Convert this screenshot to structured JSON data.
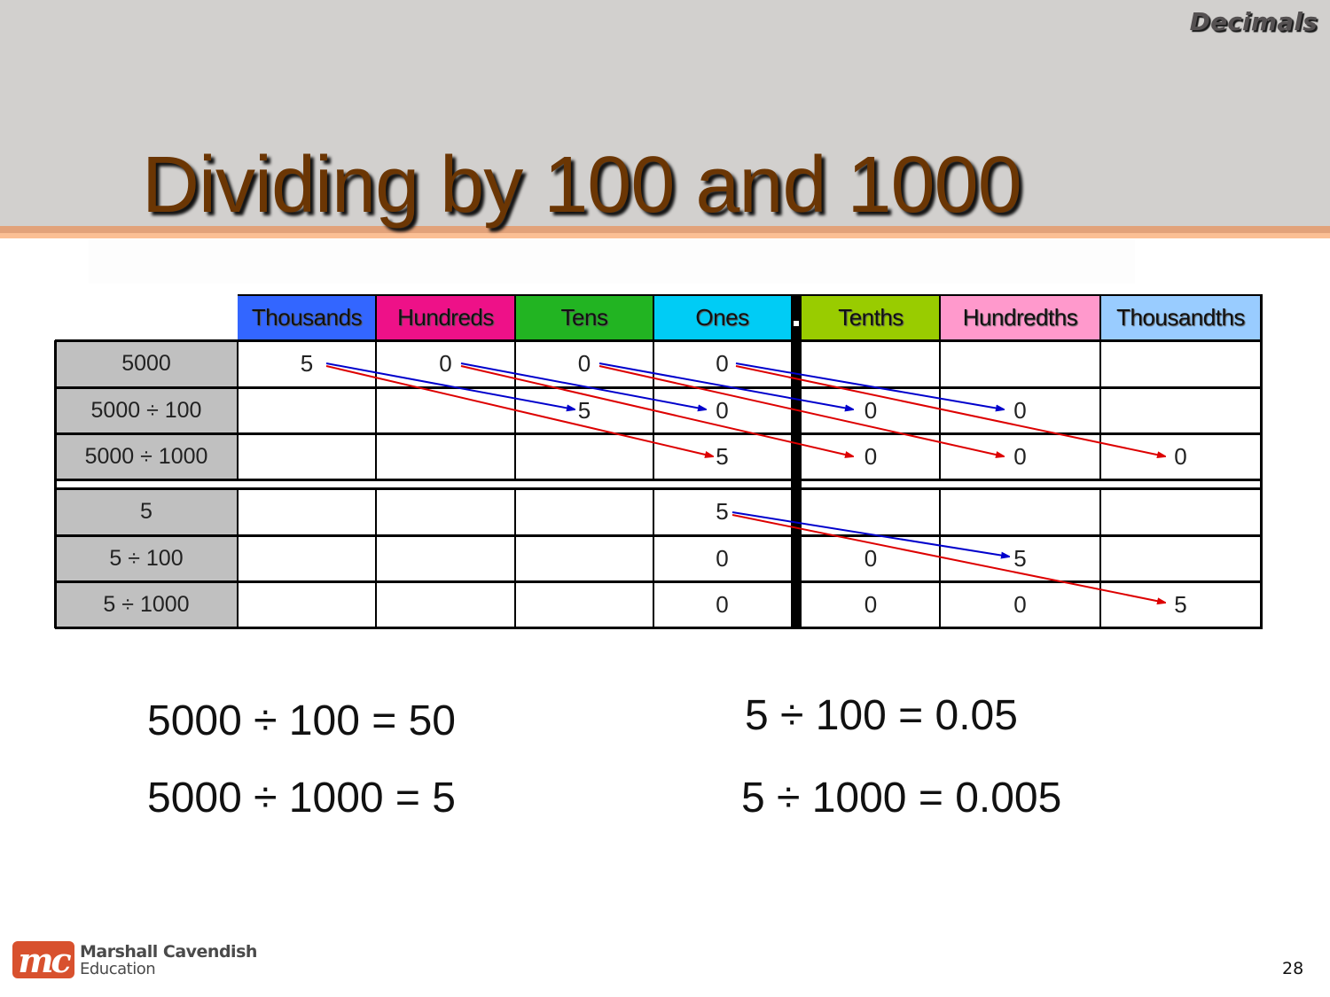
{
  "slide": {
    "topic": "Decimals",
    "title": "Dividing by 100 and 1000",
    "page_number": "28"
  },
  "place_value_table": {
    "columns": [
      {
        "label": "Thousands",
        "color": "#3366ff"
      },
      {
        "label": "Hundreds",
        "color": "#ee1188"
      },
      {
        "label": "Tens",
        "color": "#22b422"
      },
      {
        "label": "Ones",
        "color": "#00ccf5"
      },
      {
        "label": "Tenths",
        "color": "#99cc00"
      },
      {
        "label": "Hundredths",
        "color": "#ff99cc"
      },
      {
        "label": "Thousandths",
        "color": "#99ccff"
      }
    ],
    "decimal_point": ".",
    "group1": [
      {
        "label": "5000",
        "cells": [
          "5",
          "0",
          "0",
          "0",
          "",
          "",
          ""
        ]
      },
      {
        "label": "5000 ÷ 100",
        "cells": [
          "",
          "",
          "5",
          "0",
          "0",
          "0",
          ""
        ]
      },
      {
        "label": "5000 ÷ 1000",
        "cells": [
          "",
          "",
          "",
          "5",
          "0",
          "0",
          "0"
        ]
      }
    ],
    "group2": [
      {
        "label": "5",
        "cells": [
          "",
          "",
          "",
          "5",
          "",
          "",
          ""
        ]
      },
      {
        "label": "5 ÷ 100",
        "cells": [
          "",
          "",
          "",
          "0",
          "0",
          "5",
          ""
        ]
      },
      {
        "label": "5 ÷ 1000",
        "cells": [
          "",
          "",
          "",
          "0",
          "0",
          "0",
          "5"
        ]
      }
    ],
    "arrow_colors": {
      "divide_by_100": "#0000cc",
      "divide_by_1000": "#dd0000"
    }
  },
  "equations": {
    "left": [
      "5000 ÷ 100 = 50",
      "5000 ÷ 1000 = 5"
    ],
    "right": [
      "5 ÷ 100 = 0.05",
      "5 ÷ 1000 = 0.005"
    ]
  },
  "logo": {
    "mark": "mc",
    "line1": "Marshall Cavendish",
    "line2": "Education"
  }
}
